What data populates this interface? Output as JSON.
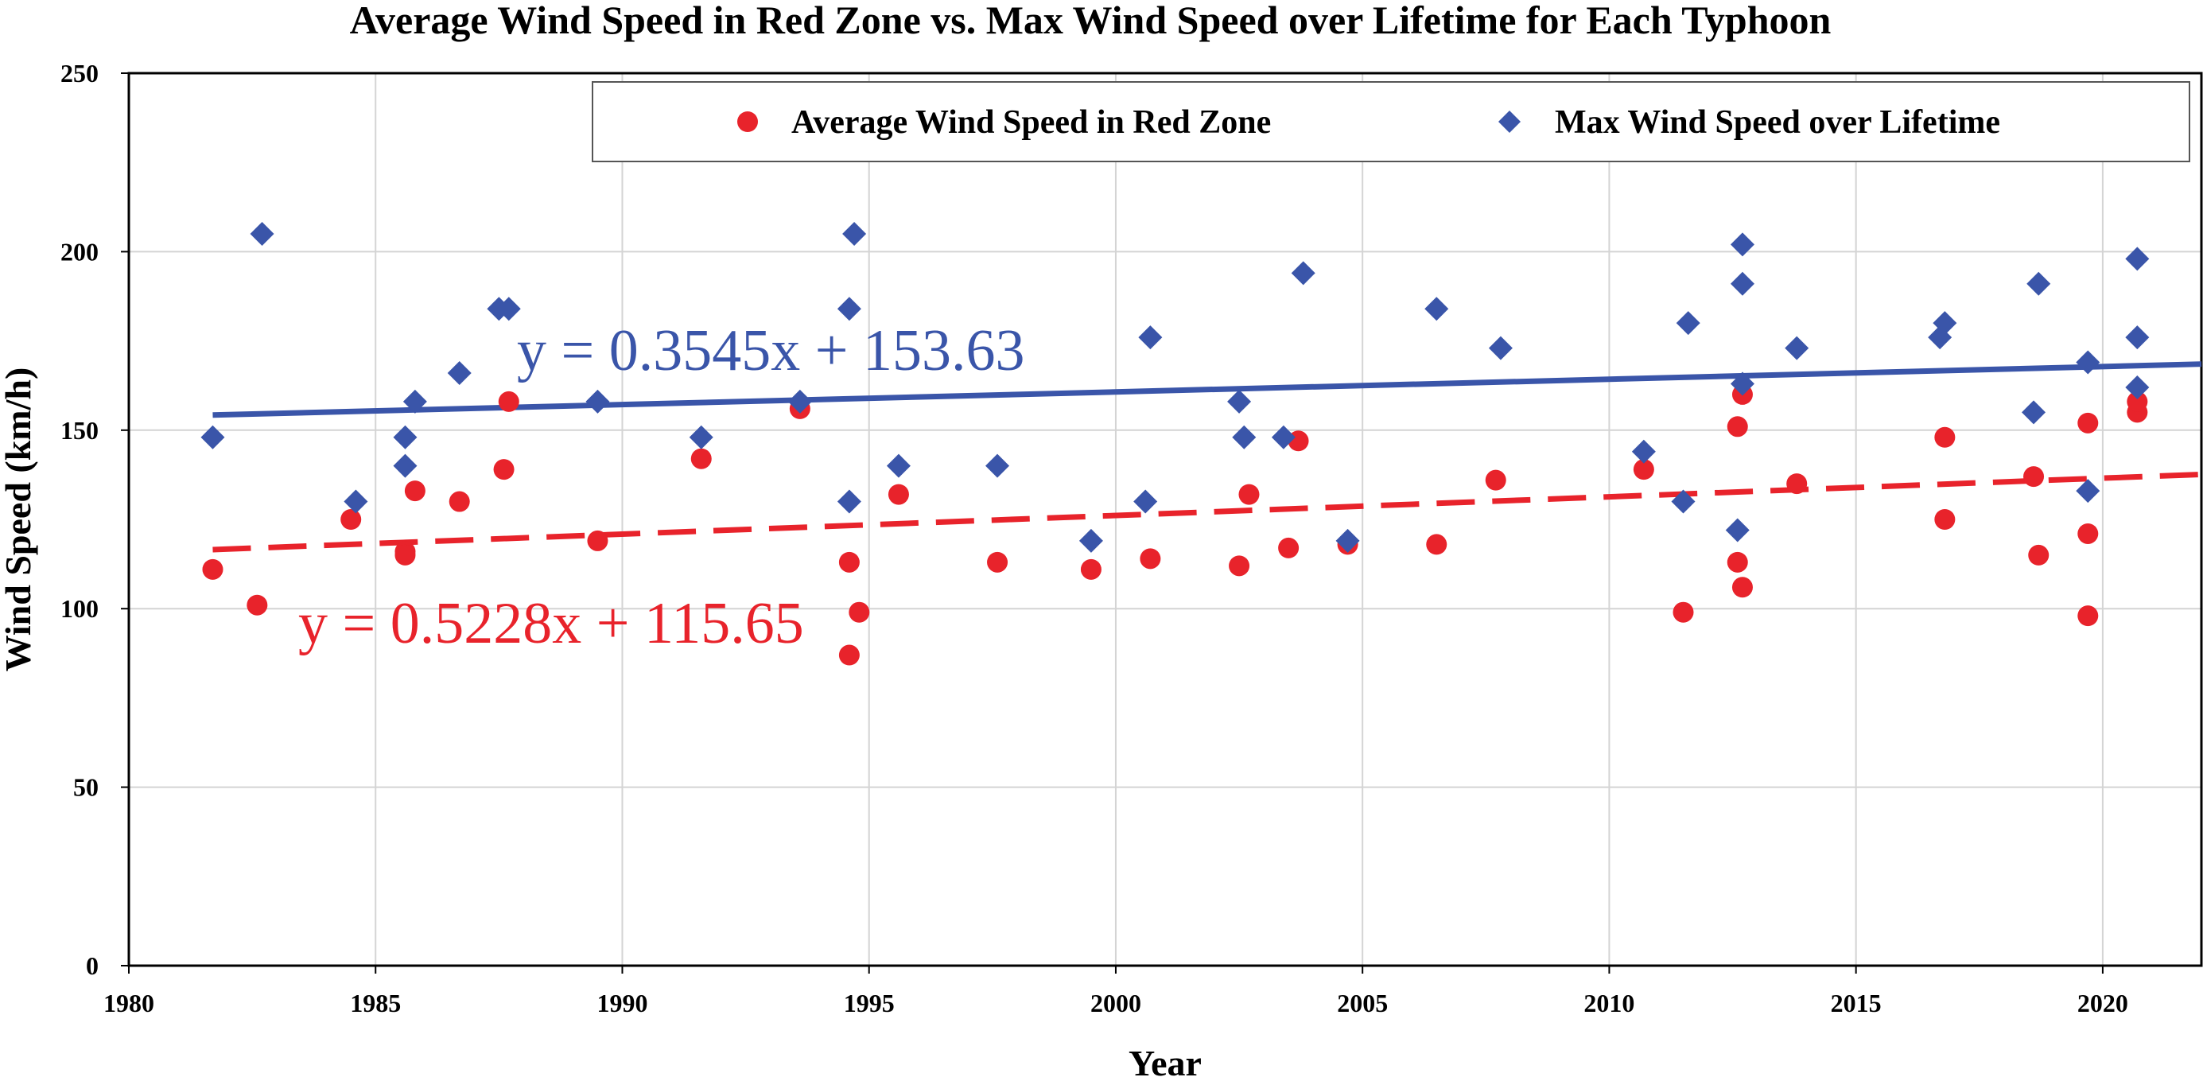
{
  "chart_data": {
    "type": "scatter",
    "title": "Average Wind Speed in Red Zone vs. Max Wind Speed over Lifetime for Each Typhoon",
    "xlabel": "Year",
    "ylabel": "Wind Speed (km/h)",
    "xlim": [
      1980,
      2022
    ],
    "ylim": [
      0,
      250
    ],
    "x_ticks": [
      1980,
      1985,
      1990,
      1995,
      2000,
      2005,
      2010,
      2015,
      2020
    ],
    "y_ticks": [
      0,
      50,
      100,
      150,
      200,
      250
    ],
    "grid": true,
    "legend_position": "top-right",
    "series": [
      {
        "name": "Average Wind Speed in Red Zone",
        "marker": "circle",
        "color": "#e8232b",
        "points": [
          [
            1981.7,
            111
          ],
          [
            1982.6,
            101
          ],
          [
            1984.5,
            125
          ],
          [
            1985.6,
            116
          ],
          [
            1985.6,
            115
          ],
          [
            1985.8,
            133
          ],
          [
            1986.7,
            130
          ],
          [
            1987.6,
            139
          ],
          [
            1987.7,
            158
          ],
          [
            1989.5,
            119
          ],
          [
            1991.6,
            142
          ],
          [
            1993.6,
            156
          ],
          [
            1994.6,
            113
          ],
          [
            1994.6,
            87
          ],
          [
            1994.8,
            99
          ],
          [
            1995.6,
            132
          ],
          [
            1997.6,
            113
          ],
          [
            1999.5,
            111
          ],
          [
            2000.7,
            114
          ],
          [
            2002.5,
            112
          ],
          [
            2002.7,
            132
          ],
          [
            2003.5,
            117
          ],
          [
            2003.7,
            147
          ],
          [
            2004.7,
            118
          ],
          [
            2006.5,
            118
          ],
          [
            2007.7,
            136
          ],
          [
            2010.7,
            139
          ],
          [
            2011.5,
            99
          ],
          [
            2012.6,
            151
          ],
          [
            2012.6,
            113
          ],
          [
            2012.7,
            106
          ],
          [
            2012.7,
            160
          ],
          [
            2013.8,
            135
          ],
          [
            2016.8,
            148
          ],
          [
            2016.8,
            125
          ],
          [
            2018.6,
            137
          ],
          [
            2018.7,
            115
          ],
          [
            2019.7,
            152
          ],
          [
            2019.7,
            121
          ],
          [
            2019.7,
            98
          ],
          [
            2020.7,
            155
          ],
          [
            2020.7,
            158
          ]
        ]
      },
      {
        "name": "Max Wind Speed over Lifetime",
        "marker": "diamond",
        "color": "#3a55a9",
        "points": [
          [
            1981.7,
            148
          ],
          [
            1982.7,
            205
          ],
          [
            1984.6,
            130
          ],
          [
            1985.6,
            148
          ],
          [
            1985.6,
            140
          ],
          [
            1985.8,
            158
          ],
          [
            1986.7,
            166
          ],
          [
            1987.5,
            184
          ],
          [
            1987.7,
            184
          ],
          [
            1989.5,
            158
          ],
          [
            1991.6,
            148
          ],
          [
            1993.6,
            158
          ],
          [
            1994.6,
            184
          ],
          [
            1994.6,
            130
          ],
          [
            1994.7,
            205
          ],
          [
            1995.6,
            140
          ],
          [
            1997.6,
            140
          ],
          [
            1999.5,
            119
          ],
          [
            2000.6,
            130
          ],
          [
            2000.7,
            176
          ],
          [
            2002.5,
            158
          ],
          [
            2002.6,
            148
          ],
          [
            2003.4,
            148
          ],
          [
            2003.8,
            194
          ],
          [
            2004.7,
            119
          ],
          [
            2006.5,
            184
          ],
          [
            2007.8,
            173
          ],
          [
            2010.7,
            144
          ],
          [
            2011.5,
            130
          ],
          [
            2011.6,
            180
          ],
          [
            2012.6,
            122
          ],
          [
            2012.7,
            191
          ],
          [
            2012.7,
            202
          ],
          [
            2012.7,
            163
          ],
          [
            2013.8,
            173
          ],
          [
            2016.7,
            176
          ],
          [
            2016.8,
            180
          ],
          [
            2018.6,
            155
          ],
          [
            2018.7,
            191
          ],
          [
            2019.7,
            133
          ],
          [
            2019.7,
            169
          ],
          [
            2020.7,
            198
          ],
          [
            2020.7,
            176
          ],
          [
            2020.7,
            162
          ]
        ]
      }
    ],
    "trendlines": [
      {
        "series": "Max Wind Speed over Lifetime",
        "slope": 0.3545,
        "intercept": 153.63,
        "style": "solid",
        "color": "#3a55a9",
        "equation": "y = 0.3545x + 153.63"
      },
      {
        "series": "Average Wind Speed in Red Zone",
        "slope": 0.5228,
        "intercept": 115.65,
        "style": "dashed",
        "color": "#e8232b",
        "equation": "y = 0.5228x + 115.65"
      }
    ]
  }
}
